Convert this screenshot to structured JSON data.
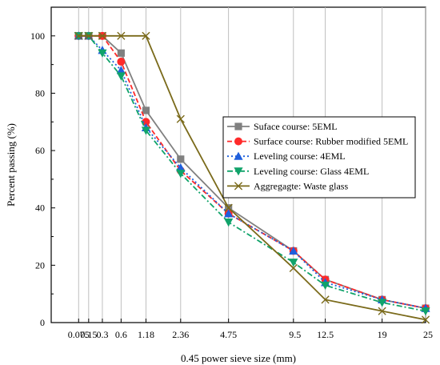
{
  "chart_data": {
    "type": "line",
    "title": "",
    "xlabel": "0.45 power sieve size (mm)",
    "ylabel": "Percent passing (%)",
    "ylim": [
      0,
      110
    ],
    "y_ticks": [
      0,
      20,
      40,
      60,
      80,
      100
    ],
    "x_scale": "sieve size ^ 0.45",
    "x_ticks": [
      {
        "label": "25",
        "size": 25
      },
      {
        "label": "19",
        "size": 19
      },
      {
        "label": "12.5",
        "size": 12.5
      },
      {
        "label": "9.5",
        "size": 9.5
      },
      {
        "label": "2.36",
        "size": 2.36
      },
      {
        "label": "4.75",
        "size": 4.75
      },
      {
        "label": "1.18",
        "size": 1.18
      },
      {
        "label": "0.6",
        "size": 0.6
      },
      {
        "label": "0.3",
        "size": 0.3
      },
      {
        "label": "0.15",
        "size": 0.15
      },
      {
        "label": "0.075",
        "size": 0.075
      }
    ],
    "grid": true,
    "legend_position": "center-right",
    "series": [
      {
        "name": "Suface course: 5EML",
        "color": "#808080",
        "marker": "square",
        "dash": "solid",
        "points": [
          [
            25,
            5
          ],
          [
            19,
            8
          ],
          [
            12.5,
            15
          ],
          [
            9.5,
            25
          ],
          [
            4.75,
            40
          ],
          [
            2.36,
            57
          ],
          [
            1.18,
            74
          ],
          [
            0.6,
            94
          ],
          [
            0.3,
            100
          ],
          [
            0.15,
            100
          ],
          [
            0.075,
            100
          ]
        ]
      },
      {
        "name": "Surface course: Rubber modified 5EML",
        "color": "#ff2a2a",
        "marker": "circle",
        "dash": "dashed",
        "points": [
          [
            25,
            5
          ],
          [
            19,
            8
          ],
          [
            12.5,
            15
          ],
          [
            9.5,
            25
          ],
          [
            4.75,
            38
          ],
          [
            2.36,
            53
          ],
          [
            1.18,
            70
          ],
          [
            0.6,
            91
          ],
          [
            0.3,
            100
          ],
          [
            0.15,
            100
          ],
          [
            0.075,
            100
          ]
        ]
      },
      {
        "name": "Leveling course: 4EML",
        "color": "#1f5fdc",
        "marker": "triangle-up",
        "dash": "dotted",
        "points": [
          [
            25,
            5
          ],
          [
            19,
            8
          ],
          [
            12.5,
            14
          ],
          [
            9.5,
            25
          ],
          [
            4.75,
            38
          ],
          [
            2.36,
            54
          ],
          [
            1.18,
            68
          ],
          [
            0.6,
            88
          ],
          [
            0.3,
            95
          ],
          [
            0.15,
            100
          ],
          [
            0.075,
            100
          ]
        ]
      },
      {
        "name": "Leveling course: Glass 4EML",
        "color": "#10a36a",
        "marker": "triangle-down",
        "dash": "dashdot",
        "points": [
          [
            25,
            4
          ],
          [
            19,
            7
          ],
          [
            12.5,
            13
          ],
          [
            9.5,
            21
          ],
          [
            4.75,
            35
          ],
          [
            2.36,
            52
          ],
          [
            1.18,
            67
          ],
          [
            0.6,
            86
          ],
          [
            0.3,
            94
          ],
          [
            0.15,
            100
          ],
          [
            0.075,
            100
          ]
        ]
      },
      {
        "name": "Aggregagte: Waste glass",
        "color": "#7a6a1a",
        "marker": "x",
        "dash": "solid",
        "points": [
          [
            25,
            1
          ],
          [
            19,
            4
          ],
          [
            12.5,
            8
          ],
          [
            9.5,
            19
          ],
          [
            4.75,
            40
          ],
          [
            2.36,
            71
          ],
          [
            1.18,
            100
          ],
          [
            0.6,
            100
          ],
          [
            0.3,
            100
          ],
          [
            0.15,
            100
          ],
          [
            0.075,
            100
          ]
        ]
      }
    ]
  }
}
